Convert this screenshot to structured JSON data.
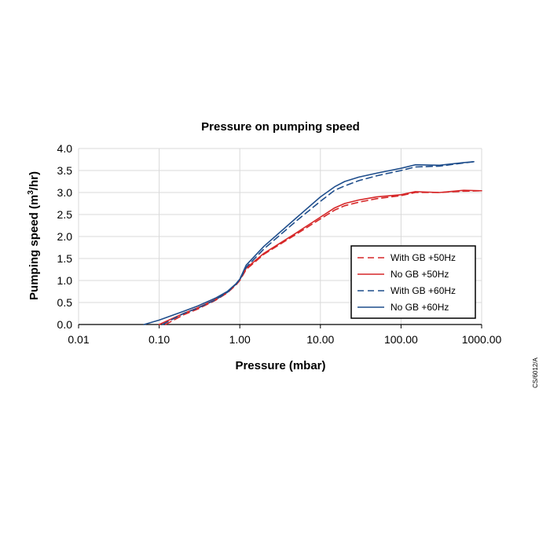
{
  "colors": {
    "red": "#d62728",
    "blue": "#1f4e8c",
    "grid": "#d9d9d9",
    "axis": "#000000"
  },
  "side_code": "CS/6012/A",
  "chart_data": {
    "type": "line",
    "title": "Pressure on pumping speed",
    "xlabel": "Pressure (mbar)",
    "ylabel_main": "Pumping speed (m",
    "ylabel_sup": "3",
    "ylabel_tail": "/hr)",
    "xscale": "log",
    "xlim": [
      0.01,
      1000
    ],
    "ylim": [
      0,
      4
    ],
    "x_ticks": [
      {
        "value": 0.01,
        "label": "0.01"
      },
      {
        "value": 0.1,
        "label": "0.10"
      },
      {
        "value": 1,
        "label": "1.00"
      },
      {
        "value": 10,
        "label": "10.00"
      },
      {
        "value": 100,
        "label": "100.00"
      },
      {
        "value": 1000,
        "label": "1000.00"
      }
    ],
    "y_ticks": [
      {
        "value": 0,
        "label": "0.0"
      },
      {
        "value": 0.5,
        "label": "0.5"
      },
      {
        "value": 1,
        "label": "1.0"
      },
      {
        "value": 1.5,
        "label": "1.5"
      },
      {
        "value": 2,
        "label": "2.0"
      },
      {
        "value": 2.5,
        "label": "2.5"
      },
      {
        "value": 3,
        "label": "3.0"
      },
      {
        "value": 3.5,
        "label": "3.5"
      },
      {
        "value": 4,
        "label": "4.0"
      }
    ],
    "grid": true,
    "legend_position": "lower-right",
    "series": [
      {
        "name": "With GB +50Hz",
        "color": "#d62728",
        "dash": "dashed",
        "x": [
          0.12,
          0.2,
          0.3,
          0.5,
          0.7,
          0.9,
          1.0,
          1.2,
          2,
          5,
          10,
          15,
          20,
          30,
          50,
          100,
          150,
          300,
          600,
          1000
        ],
        "y": [
          0.0,
          0.22,
          0.35,
          0.55,
          0.72,
          0.9,
          1.0,
          1.25,
          1.6,
          2.05,
          2.4,
          2.6,
          2.7,
          2.78,
          2.86,
          2.93,
          3.0,
          3.0,
          3.03,
          3.04
        ]
      },
      {
        "name": "No GB +50Hz",
        "color": "#d62728",
        "dash": "solid",
        "x": [
          0.1,
          0.2,
          0.3,
          0.5,
          0.7,
          0.9,
          1.0,
          1.2,
          2,
          5,
          10,
          15,
          20,
          30,
          50,
          100,
          150,
          300,
          600,
          1000
        ],
        "y": [
          0.0,
          0.25,
          0.38,
          0.57,
          0.74,
          0.92,
          1.02,
          1.28,
          1.62,
          2.08,
          2.44,
          2.65,
          2.75,
          2.83,
          2.9,
          2.95,
          3.02,
          3.0,
          3.05,
          3.04
        ]
      },
      {
        "name": "With GB +60Hz",
        "color": "#1f4e8c",
        "dash": "dashed",
        "x": [
          0.11,
          0.2,
          0.3,
          0.5,
          0.7,
          0.9,
          1.0,
          1.2,
          2,
          5,
          10,
          15,
          20,
          30,
          50,
          100,
          150,
          300,
          600,
          800
        ],
        "y": [
          0.0,
          0.25,
          0.37,
          0.56,
          0.73,
          0.92,
          1.02,
          1.3,
          1.72,
          2.35,
          2.8,
          3.05,
          3.15,
          3.27,
          3.38,
          3.5,
          3.58,
          3.6,
          3.67,
          3.7
        ]
      },
      {
        "name": "No GB +60Hz",
        "color": "#1f4e8c",
        "dash": "solid",
        "x": [
          0.065,
          0.1,
          0.2,
          0.3,
          0.5,
          0.7,
          0.9,
          1.0,
          1.2,
          2,
          5,
          10,
          15,
          20,
          30,
          50,
          100,
          150,
          300,
          600,
          800
        ],
        "y": [
          0.0,
          0.1,
          0.3,
          0.42,
          0.6,
          0.75,
          0.93,
          1.03,
          1.35,
          1.78,
          2.42,
          2.9,
          3.13,
          3.25,
          3.35,
          3.44,
          3.55,
          3.63,
          3.62,
          3.68,
          3.7
        ]
      }
    ]
  }
}
